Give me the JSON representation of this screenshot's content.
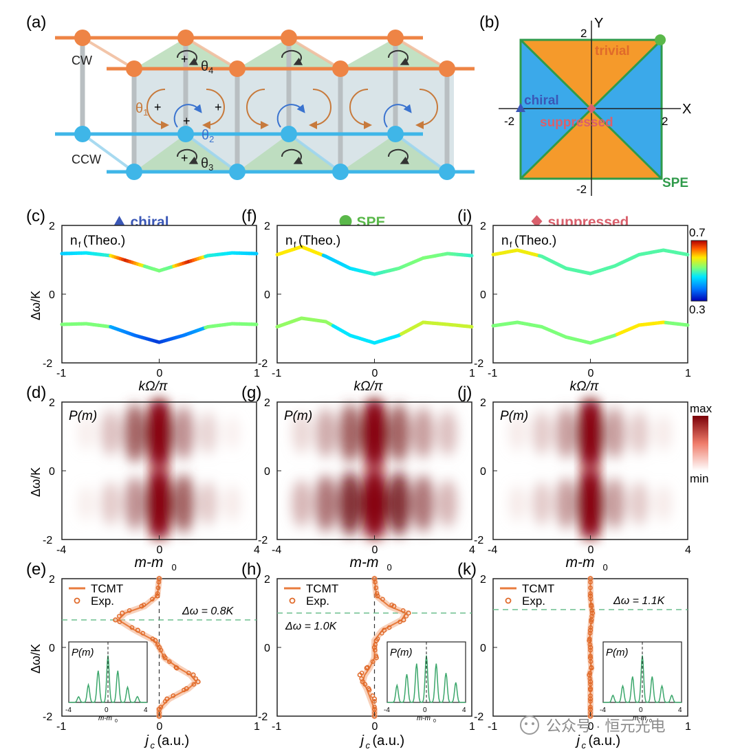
{
  "panel_letters": {
    "a": "(a)",
    "b": "(b)",
    "c": "(c)",
    "d": "(d)",
    "e": "(e)",
    "f": "(f)",
    "g": "(g)",
    "h": "(h)",
    "i": "(i)",
    "j": "(j)",
    "k": "(k)"
  },
  "panel_a": {
    "cw_label": "CW",
    "ccw_label": "CCW",
    "theta1": "θ",
    "theta1_sub": "1",
    "theta2": "θ",
    "theta2_sub": "2",
    "theta3": "θ",
    "theta3_sub": "3",
    "theta4": "θ",
    "theta4_sub": "4",
    "plus": "+",
    "colors": {
      "cw": "#ee8445",
      "ccw": "#3fb6e8",
      "cell_fill": "#c8d6dc",
      "tri_fill": "#b9dcb8",
      "arrow_orange": "#c77a3c",
      "arrow_blue": "#3a73cf"
    }
  },
  "panel_b": {
    "x_axis": "X",
    "y_axis": "Y",
    "tick_pos": "2",
    "tick_neg": "-2",
    "region_trivial": "trivial",
    "region_chiral": "chiral",
    "region_suppressed": "suppressed",
    "region_spe": "SPE",
    "colors": {
      "blue": "#3ba9ea",
      "orange": "#f59a2b",
      "diag": "#2f9a4a",
      "trivial": "#e06a2a",
      "chiral": "#3a57b6",
      "suppressed": "#d9606c",
      "spe": "#2f9a4a"
    }
  },
  "columns": [
    {
      "key": "chiral",
      "header_label": "chiral",
      "header_marker": "triangle",
      "header_color": "#3a57b6",
      "band_label": "n",
      "band_label_sub": "f",
      "band_label_rest": "(Theo.)",
      "dp_label": "P(m)",
      "legend_line": "TCMT",
      "legend_marker": "Exp.",
      "annotation": "Δω = 0.8K",
      "annotation_dy": 0.8,
      "x_label_c": "kΩ/π",
      "x_label_d": "m-m",
      "x_label_d_sub": "0",
      "x_label_e": "j",
      "x_label_e_sub": "c",
      "x_label_e_rest": " (a.u.)"
    },
    {
      "key": "spe",
      "header_label": "SPE",
      "header_marker": "circle",
      "header_color": "#5ab84a",
      "band_label": "n",
      "band_label_sub": "f",
      "band_label_rest": "(Theo.)",
      "dp_label": "P(m)",
      "legend_line": "TCMT",
      "legend_marker": "Exp.",
      "annotation": "Δω = 1.0K",
      "annotation_dy": 1.0,
      "x_label_c": "kΩ/π",
      "x_label_d": "m-m",
      "x_label_d_sub": "0",
      "x_label_e": "j",
      "x_label_e_sub": "c",
      "x_label_e_rest": " (a.u.)"
    },
    {
      "key": "suppressed",
      "header_label": "suppressed",
      "header_marker": "diamond",
      "header_color": "#d9606c",
      "band_label": "n",
      "band_label_sub": "f",
      "band_label_rest": "(Theo.)",
      "dp_label": "P(m)",
      "legend_line": "TCMT",
      "legend_marker": "Exp.",
      "annotation": "Δω = 1.1K",
      "annotation_dy": 1.1,
      "x_label_c": "kΩ/π",
      "x_label_d": "m-m",
      "x_label_d_sub": "0",
      "x_label_e": "j",
      "x_label_e_sub": "c",
      "x_label_e_rest": " (a.u.)"
    }
  ],
  "y_label": "Δω/K",
  "inset": {
    "label": "P(m)",
    "x_label": "m-m",
    "x_label_sub": "0",
    "ticks": [
      "-4",
      "0",
      "4"
    ]
  },
  "colorbar_c": {
    "max_label": "0.7",
    "min_label": "0.3"
  },
  "colorbar_d": {
    "max_label": "max",
    "min_label": "min"
  },
  "watermark": "公众号 · 恒元光电",
  "chart_data": [
    {
      "type": "line",
      "panel": "(c)",
      "series_role": "band structure",
      "xlim": [
        -1,
        1
      ],
      "ylim": [
        -2,
        2
      ],
      "xticks": [
        "-1",
        "0",
        "1"
      ],
      "yticks": [
        "-2",
        "0",
        "2"
      ],
      "x": [
        -1,
        -0.75,
        -0.5,
        -0.25,
        0,
        0.25,
        0.5,
        0.75,
        1
      ],
      "series": [
        {
          "values": [
            1.18,
            1.2,
            1.12,
            0.9,
            0.68,
            0.9,
            1.12,
            1.2,
            1.18
          ]
        },
        {
          "values": [
            -0.88,
            -0.86,
            -0.95,
            -1.2,
            -1.4,
            -1.2,
            -0.95,
            -0.86,
            -0.88
          ]
        }
      ]
    },
    {
      "type": "line",
      "panel": "(f)",
      "series_role": "band structure",
      "xlim": [
        -1,
        1
      ],
      "ylim": [
        -2,
        2
      ],
      "x": [
        -1,
        -0.75,
        -0.5,
        -0.25,
        0,
        0.25,
        0.5,
        0.75,
        1
      ],
      "series": [
        {
          "values": [
            1.15,
            1.38,
            1.1,
            0.75,
            0.58,
            0.75,
            1.05,
            1.18,
            1.12
          ]
        },
        {
          "values": [
            -0.95,
            -0.7,
            -0.8,
            -1.2,
            -1.42,
            -1.2,
            -0.82,
            -0.88,
            -0.95
          ]
        }
      ]
    },
    {
      "type": "line",
      "panel": "(i)",
      "series_role": "band structure",
      "xlim": [
        -1,
        1
      ],
      "ylim": [
        -2,
        2
      ],
      "x": [
        -1,
        -0.75,
        -0.5,
        -0.25,
        0,
        0.25,
        0.5,
        0.75,
        1
      ],
      "series": [
        {
          "values": [
            1.15,
            1.28,
            1.1,
            0.75,
            0.6,
            0.82,
            1.15,
            1.28,
            1.15
          ]
        },
        {
          "values": [
            -0.92,
            -0.82,
            -0.95,
            -1.25,
            -1.42,
            -1.2,
            -0.9,
            -0.82,
            -0.9
          ]
        }
      ]
    },
    {
      "type": "heatmap",
      "panel": "(d)",
      "xlim": [
        -4,
        4
      ],
      "ylim": [
        -2,
        2
      ],
      "x": [
        -3,
        -2,
        -1,
        0,
        1,
        2,
        3
      ],
      "upper_weights": [
        0.12,
        0.4,
        0.75,
        1.0,
        0.6,
        0.3,
        0.1
      ],
      "lower_weights": [
        0.12,
        0.35,
        0.6,
        1.0,
        0.75,
        0.35,
        0.15
      ]
    },
    {
      "type": "heatmap",
      "panel": "(g)",
      "xlim": [
        -4,
        4
      ],
      "ylim": [
        -2,
        2
      ],
      "x": [
        -3,
        -2,
        -1,
        0,
        1,
        2,
        3
      ],
      "upper_weights": [
        0.28,
        0.5,
        0.75,
        1.0,
        0.75,
        0.55,
        0.4
      ],
      "lower_weights": [
        0.45,
        0.7,
        0.9,
        1.0,
        0.9,
        0.7,
        0.45
      ]
    },
    {
      "type": "heatmap",
      "panel": "(j)",
      "xlim": [
        -4,
        4
      ],
      "ylim": [
        -2,
        2
      ],
      "x": [
        -3,
        -2,
        -1,
        0,
        1,
        2,
        3
      ],
      "upper_weights": [
        0.15,
        0.35,
        0.55,
        1.0,
        0.55,
        0.35,
        0.15
      ],
      "lower_weights": [
        0.15,
        0.35,
        0.55,
        1.0,
        0.55,
        0.35,
        0.15
      ]
    },
    {
      "type": "line",
      "panel": "(e)",
      "xlim": [
        -1,
        1
      ],
      "ylim": [
        -2,
        2
      ],
      "y": [
        2,
        1.5,
        1.2,
        1.0,
        0.8,
        0.5,
        0.2,
        0,
        -0.3,
        -0.6,
        -0.8,
        -1.0,
        -1.2,
        -1.5,
        -1.8,
        -2
      ],
      "tcmt_x": [
        0,
        -0.02,
        -0.15,
        -0.35,
        -0.42,
        -0.25,
        -0.05,
        0,
        0.05,
        0.2,
        0.32,
        0.38,
        0.3,
        0.1,
        0.0,
        0
      ],
      "exp_x": [
        0,
        -0.02,
        -0.18,
        -0.38,
        -0.45,
        -0.22,
        -0.04,
        0.0,
        0.06,
        0.18,
        0.35,
        0.4,
        0.28,
        0.08,
        0.0,
        0
      ]
    },
    {
      "type": "line",
      "panel": "(h)",
      "xlim": [
        -1,
        1
      ],
      "ylim": [
        -2,
        2
      ],
      "y": [
        2,
        1.5,
        1.2,
        1.0,
        0.8,
        0.5,
        0.2,
        0,
        -0.3,
        -0.6,
        -0.8,
        -1.0,
        -1.2,
        -1.5,
        -1.8,
        -2
      ],
      "tcmt_x": [
        0,
        0.02,
        0.15,
        0.32,
        0.28,
        0.08,
        0.0,
        0,
        0.0,
        -0.05,
        -0.1,
        -0.12,
        -0.08,
        -0.04,
        0.0,
        0
      ],
      "exp_x": [
        0,
        0.03,
        0.2,
        0.35,
        0.3,
        0.1,
        0.02,
        0.0,
        0.02,
        -0.08,
        -0.15,
        -0.12,
        -0.06,
        0.0,
        0.0,
        0
      ]
    },
    {
      "type": "line",
      "panel": "(k)",
      "xlim": [
        -1,
        1
      ],
      "ylim": [
        -2,
        2
      ],
      "y": [
        2,
        1.5,
        1.2,
        1.0,
        0.8,
        0.5,
        0.2,
        0,
        -0.3,
        -0.6,
        -0.8,
        -1.0,
        -1.2,
        -1.5,
        -1.8,
        -2
      ],
      "tcmt_x": [
        0,
        0.0,
        0.01,
        0.02,
        0.01,
        0.0,
        -0.01,
        0,
        0.0,
        0.01,
        -0.01,
        0.0,
        0.0,
        0.0,
        0.0,
        0
      ],
      "exp_x": [
        0,
        0.0,
        0.01,
        0.02,
        0.01,
        0.0,
        -0.01,
        0,
        0.0,
        0.01,
        -0.01,
        0.0,
        0.0,
        0.0,
        0.0,
        0
      ]
    }
  ]
}
